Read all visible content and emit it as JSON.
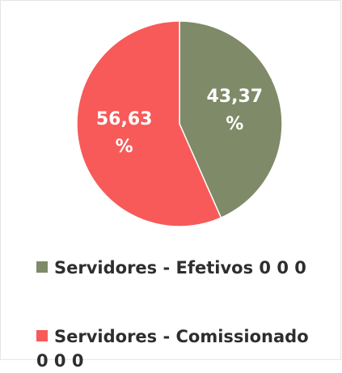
{
  "chart_data": {
    "type": "pie",
    "categories": [
      "Servidores - Efetivos 0 0 0",
      "Servidores - Comissionado 0 0 0"
    ],
    "values": [
      43.37,
      56.63
    ],
    "value_labels": [
      "43,37 %",
      "56,63 %"
    ],
    "colors": [
      "#7f8a68",
      "#f75a58"
    ]
  }
}
